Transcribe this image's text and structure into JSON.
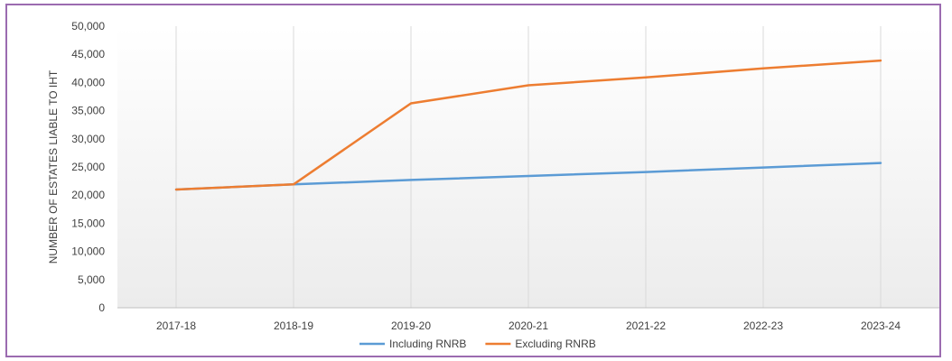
{
  "chart_data": {
    "type": "line",
    "categories": [
      "2017-18",
      "2018-19",
      "2019-20",
      "2020-21",
      "2021-22",
      "2022-23",
      "2023-24"
    ],
    "ylabel": "NUMBER OF ESTATES LIABLE TO IHT",
    "ylim": [
      0,
      50000
    ],
    "yticks": [
      0,
      5000,
      10000,
      15000,
      20000,
      25000,
      30000,
      35000,
      40000,
      45000,
      50000
    ],
    "ytick_labels": [
      "0",
      "5,000",
      "10,000",
      "15,000",
      "20,000",
      "25,000",
      "30,000",
      "35,000",
      "40,000",
      "45,000",
      "50,000"
    ],
    "grid": "vertical",
    "legend_position": "bottom",
    "series": [
      {
        "name": "Including RNRB",
        "color": "#5b9bd5",
        "values": [
          21000,
          21900,
          22700,
          23400,
          24100,
          24900,
          25700
        ]
      },
      {
        "name": "Excluding RNRB",
        "color": "#ed7d31",
        "values": [
          21000,
          21900,
          36300,
          39500,
          40900,
          42500,
          43900
        ]
      }
    ]
  }
}
